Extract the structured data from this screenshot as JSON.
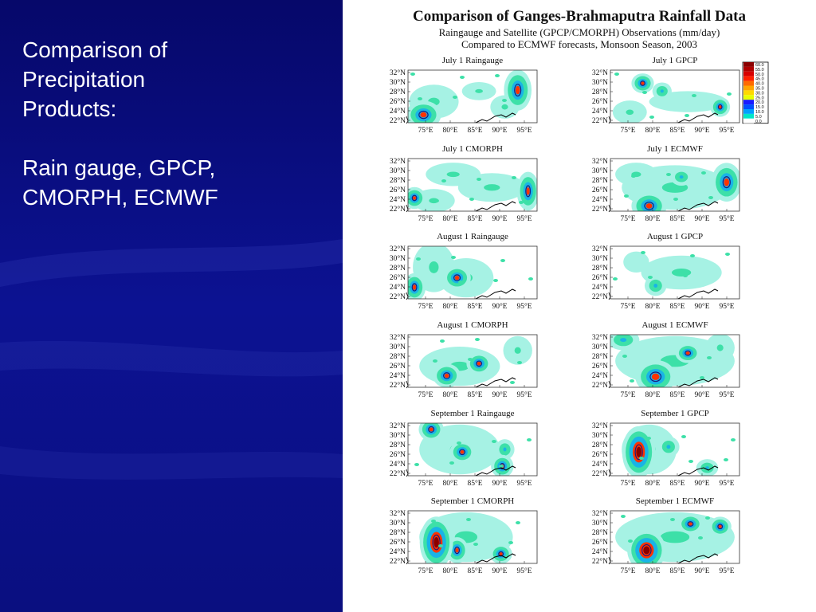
{
  "slide": {
    "heading_lines": [
      "Comparison of",
      "Precipitation",
      "Products:"
    ],
    "body_lines": [
      "Rain gauge, GPCP,",
      "CMORPH, ECMWF"
    ],
    "bg_color": "#0a0f8a"
  },
  "figure": {
    "title": "Comparison of Ganges-Brahmaputra Rainfall Data",
    "subtitle1": "Raingauge and Satellite (GPCP/CMORPH) Observations (mm/day)",
    "subtitle2": "Compared to ECMWF forecasts, Monsoon Season, 2003",
    "lat_labels": [
      "32°N",
      "30°N",
      "28°N",
      "26°N",
      "24°N",
      "22°N"
    ],
    "lon_labels": [
      "75°E",
      "80°E",
      "85°E",
      "90°E",
      "95°E"
    ],
    "panels": [
      {
        "title": "July 1 Raingauge",
        "blobs": [
          [
            0.85,
            0.38,
            0.07,
            0.32,
            3
          ],
          [
            0.12,
            0.85,
            0.1,
            0.2,
            3
          ],
          [
            0.2,
            0.6,
            0.18,
            0.3,
            1
          ],
          [
            0.55,
            0.4,
            0.12,
            0.15,
            1
          ],
          [
            0.75,
            0.7,
            0.1,
            0.2,
            1
          ]
        ]
      },
      {
        "title": "July 1 GPCP",
        "blobs": [
          [
            0.25,
            0.25,
            0.05,
            0.12,
            3
          ],
          [
            0.4,
            0.4,
            0.05,
            0.12,
            2
          ],
          [
            0.85,
            0.7,
            0.04,
            0.12,
            3
          ],
          [
            0.6,
            0.6,
            0.3,
            0.2,
            0
          ],
          [
            0.15,
            0.8,
            0.12,
            0.2,
            1
          ]
        ]
      },
      {
        "title": "July 1 CMORPH",
        "blobs": [
          [
            0.05,
            0.75,
            0.05,
            0.14,
            3
          ],
          [
            0.93,
            0.62,
            0.05,
            0.3,
            3
          ],
          [
            0.35,
            0.3,
            0.2,
            0.2,
            1
          ],
          [
            0.65,
            0.55,
            0.25,
            0.25,
            1
          ],
          [
            0.2,
            0.8,
            0.15,
            0.2,
            1
          ]
        ]
      },
      {
        "title": "July 1 ECMWF",
        "blobs": [
          [
            0.3,
            0.9,
            0.1,
            0.2,
            3
          ],
          [
            0.55,
            0.35,
            0.06,
            0.12,
            2
          ],
          [
            0.9,
            0.45,
            0.08,
            0.3,
            3
          ],
          [
            0.5,
            0.55,
            0.4,
            0.4,
            1
          ],
          [
            0.2,
            0.3,
            0.15,
            0.2,
            1
          ]
        ]
      },
      {
        "title": "August 1 Raingauge",
        "blobs": [
          [
            0.38,
            0.6,
            0.07,
            0.16,
            3
          ],
          [
            0.05,
            0.78,
            0.05,
            0.2,
            3
          ],
          [
            0.2,
            0.4,
            0.15,
            0.45,
            1
          ],
          [
            0.45,
            0.6,
            0.2,
            0.35,
            1
          ]
        ]
      },
      {
        "title": "August 1 GPCP",
        "blobs": [
          [
            0.35,
            0.75,
            0.06,
            0.15,
            2
          ],
          [
            0.55,
            0.5,
            0.3,
            0.3,
            1
          ],
          [
            0.2,
            0.3,
            0.1,
            0.2,
            0
          ]
        ]
      },
      {
        "title": "August 1 CMORPH",
        "blobs": [
          [
            0.3,
            0.78,
            0.07,
            0.16,
            3
          ],
          [
            0.55,
            0.55,
            0.06,
            0.14,
            3
          ],
          [
            0.4,
            0.6,
            0.3,
            0.35,
            1
          ],
          [
            0.85,
            0.3,
            0.1,
            0.25,
            1
          ]
        ]
      },
      {
        "title": "August 1 ECMWF",
        "blobs": [
          [
            0.35,
            0.8,
            0.12,
            0.25,
            3
          ],
          [
            0.6,
            0.35,
            0.06,
            0.12,
            3
          ],
          [
            0.1,
            0.1,
            0.1,
            0.15,
            2
          ],
          [
            0.5,
            0.5,
            0.45,
            0.45,
            1
          ],
          [
            0.85,
            0.25,
            0.1,
            0.25,
            1
          ]
        ]
      },
      {
        "title": "September 1 Raingauge",
        "blobs": [
          [
            0.18,
            0.12,
            0.06,
            0.15,
            3
          ],
          [
            0.42,
            0.55,
            0.06,
            0.14,
            3
          ],
          [
            0.75,
            0.5,
            0.05,
            0.15,
            2
          ],
          [
            0.73,
            0.82,
            0.05,
            0.15,
            3
          ],
          [
            0.4,
            0.5,
            0.3,
            0.45,
            1
          ]
        ]
      },
      {
        "title": "September 1 GPCP",
        "blobs": [
          [
            0.22,
            0.55,
            0.08,
            0.4,
            4
          ],
          [
            0.45,
            0.45,
            0.06,
            0.15,
            2
          ],
          [
            0.75,
            0.85,
            0.06,
            0.12,
            2
          ],
          [
            0.3,
            0.5,
            0.2,
            0.45,
            1
          ]
        ]
      },
      {
        "title": "September 1 CMORPH",
        "blobs": [
          [
            0.22,
            0.6,
            0.08,
            0.4,
            4
          ],
          [
            0.38,
            0.75,
            0.05,
            0.18,
            3
          ],
          [
            0.72,
            0.82,
            0.05,
            0.12,
            3
          ],
          [
            0.45,
            0.5,
            0.35,
            0.45,
            1
          ]
        ]
      },
      {
        "title": "September 1 ECMWF",
        "blobs": [
          [
            0.28,
            0.75,
            0.1,
            0.3,
            4
          ],
          [
            0.62,
            0.25,
            0.06,
            0.12,
            3
          ],
          [
            0.85,
            0.3,
            0.05,
            0.12,
            3
          ],
          [
            0.5,
            0.5,
            0.45,
            0.45,
            1
          ]
        ]
      }
    ],
    "legend": {
      "values": [
        "60.0",
        "55.0",
        "50.0",
        "45.0",
        "40.0",
        "35.0",
        "30.0",
        "25.0",
        "20.0",
        "15.0",
        "10.0",
        "5.0",
        "0.0"
      ],
      "colors": [
        "#8b0000",
        "#b00000",
        "#d80000",
        "#ff2000",
        "#ff6a00",
        "#ffa500",
        "#ffd800",
        "#e8ff00",
        "#1a1aff",
        "#0050ff",
        "#00a0ff",
        "#00e6c8",
        "#ffffff"
      ]
    },
    "level_colors": [
      "#a6f2e4",
      "#3de0a8",
      "#19b4e6",
      "#ff3300",
      "#8b0000"
    ]
  }
}
